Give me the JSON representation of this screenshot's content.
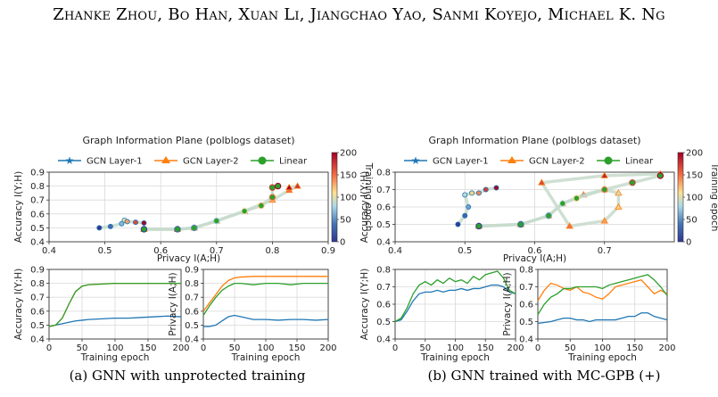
{
  "header": {
    "authors": "Zhanke Zhou, Bo Han, Xuan Li, Jiangchao Yao, Sanmi Koyejo, Michael K. Ng"
  },
  "legend": {
    "gcn1": "GCN Layer-1",
    "gcn2": "GCN Layer-2",
    "linear": "Linear"
  },
  "colors": {
    "gcn1": "#1f77b4",
    "gcn2": "#ff7f0e",
    "linear": "#2ca02c"
  },
  "captions": {
    "a": "(a) GNN with unprotected training",
    "b": "(b) GNN trained with MC-GPB (+)"
  },
  "chart_data": [
    {
      "type": "scatter",
      "title": "Graph Information Plane (polblogs dataset)",
      "xlabel": "Privacy I(A;H)",
      "ylabel": "Accuracy I(Y;H)",
      "xlim": [
        0.4,
        0.9
      ],
      "ylim": [
        0.4,
        0.9
      ],
      "xticks": [
        "0.4",
        "0.5",
        "0.6",
        "0.7",
        "0.8",
        "0.9"
      ],
      "yticks": [
        "0.4",
        "0.5",
        "0.6",
        "0.7",
        "0.8",
        "0.9"
      ],
      "colorbar": {
        "label": "Training epoch",
        "range": [
          0,
          200
        ],
        "ticks": [
          "0",
          "50",
          "100",
          "150",
          "200"
        ]
      },
      "series": [
        {
          "name": "GCN Layer-1",
          "points": [
            [
              0.49,
              0.5
            ],
            [
              0.51,
              0.51
            ],
            [
              0.53,
              0.53
            ],
            [
              0.535,
              0.555
            ],
            [
              0.54,
              0.545
            ],
            [
              0.555,
              0.54
            ],
            [
              0.57,
              0.535
            ]
          ]
        },
        {
          "name": "GCN Layer-2",
          "points": [
            [
              0.57,
              0.49
            ],
            [
              0.63,
              0.49
            ],
            [
              0.66,
              0.5
            ],
            [
              0.7,
              0.55
            ],
            [
              0.75,
              0.62
            ],
            [
              0.8,
              0.7
            ],
            [
              0.83,
              0.77
            ],
            [
              0.845,
              0.8
            ],
            [
              0.83,
              0.79
            ]
          ]
        },
        {
          "name": "Linear",
          "points": [
            [
              0.57,
              0.49
            ],
            [
              0.63,
              0.49
            ],
            [
              0.66,
              0.5
            ],
            [
              0.7,
              0.55
            ],
            [
              0.75,
              0.62
            ],
            [
              0.78,
              0.66
            ],
            [
              0.8,
              0.72
            ],
            [
              0.8,
              0.79
            ],
            [
              0.81,
              0.8
            ]
          ]
        }
      ]
    },
    {
      "type": "line",
      "xlabel": "Training epoch",
      "ylabel": "Accuracy I(Y;H)",
      "xlim": [
        0,
        200
      ],
      "ylim": [
        0.4,
        0.9
      ],
      "xticks": [
        "0",
        "50",
        "100",
        "150",
        "200"
      ],
      "yticks": [
        "0.4",
        "0.5",
        "0.6",
        "0.7",
        "0.8",
        "0.9"
      ],
      "x": [
        0,
        10,
        20,
        30,
        40,
        50,
        60,
        80,
        100,
        120,
        140,
        160,
        180,
        200
      ],
      "series": [
        {
          "name": "GCN Layer-1",
          "values": [
            0.49,
            0.5,
            0.51,
            0.52,
            0.53,
            0.535,
            0.54,
            0.545,
            0.55,
            0.55,
            0.555,
            0.56,
            0.565,
            0.56
          ]
        },
        {
          "name": "GCN Layer-2",
          "values": [
            0.49,
            0.5,
            0.55,
            0.65,
            0.74,
            0.78,
            0.79,
            0.795,
            0.8,
            0.8,
            0.8,
            0.8,
            0.8,
            0.8
          ]
        },
        {
          "name": "Linear",
          "values": [
            0.49,
            0.5,
            0.55,
            0.65,
            0.74,
            0.78,
            0.79,
            0.795,
            0.8,
            0.8,
            0.8,
            0.8,
            0.8,
            0.8
          ]
        }
      ]
    },
    {
      "type": "line",
      "xlabel": "Training epoch",
      "ylabel": "Privacy I(A;H)",
      "xlim": [
        0,
        200
      ],
      "ylim": [
        0.4,
        0.9
      ],
      "xticks": [
        "0",
        "50",
        "100",
        "150",
        "200"
      ],
      "yticks": [
        "0.4",
        "0.5",
        "0.6",
        "0.7",
        "0.8",
        "0.9"
      ],
      "x": [
        0,
        10,
        20,
        30,
        40,
        50,
        60,
        80,
        100,
        120,
        140,
        160,
        180,
        200
      ],
      "series": [
        {
          "name": "GCN Layer-1",
          "values": [
            0.49,
            0.49,
            0.5,
            0.53,
            0.56,
            0.57,
            0.56,
            0.54,
            0.54,
            0.535,
            0.54,
            0.54,
            0.535,
            0.54
          ]
        },
        {
          "name": "GCN Layer-2",
          "values": [
            0.6,
            0.66,
            0.72,
            0.78,
            0.82,
            0.84,
            0.845,
            0.85,
            0.85,
            0.85,
            0.85,
            0.85,
            0.85,
            0.85
          ]
        },
        {
          "name": "Linear",
          "values": [
            0.57,
            0.64,
            0.7,
            0.75,
            0.78,
            0.8,
            0.8,
            0.79,
            0.8,
            0.8,
            0.79,
            0.8,
            0.8,
            0.8
          ]
        }
      ]
    },
    {
      "type": "scatter",
      "title": "Graph Information Plane (polblogs dataset)",
      "xlabel": "Privacy I(A;H)",
      "ylabel": "Accuracy I(Y;H)",
      "xlim": [
        0.4,
        0.8
      ],
      "ylim": [
        0.4,
        0.8
      ],
      "xticks": [
        "0.4",
        "0.5",
        "0.6",
        "0.7"
      ],
      "yticks": [
        "0.4",
        "0.5",
        "0.6",
        "0.7",
        "0.8"
      ],
      "colorbar": {
        "label": "Training epoch",
        "range": [
          0,
          200
        ],
        "ticks": [
          "0",
          "50",
          "100",
          "150",
          "200"
        ]
      },
      "series": [
        {
          "name": "GCN Layer-1",
          "points": [
            [
              0.49,
              0.5
            ],
            [
              0.5,
              0.55
            ],
            [
              0.505,
              0.6
            ],
            [
              0.5,
              0.67
            ],
            [
              0.51,
              0.68
            ],
            [
              0.52,
              0.68
            ],
            [
              0.53,
              0.7
            ],
            [
              0.545,
              0.71
            ]
          ]
        },
        {
          "name": "GCN Layer-2",
          "points": [
            [
              0.52,
              0.49
            ],
            [
              0.58,
              0.5
            ],
            [
              0.62,
              0.55
            ],
            [
              0.64,
              0.62
            ],
            [
              0.67,
              0.67
            ],
            [
              0.7,
              0.7
            ],
            [
              0.72,
              0.68
            ],
            [
              0.72,
              0.6
            ],
            [
              0.7,
              0.52
            ],
            [
              0.65,
              0.49
            ],
            [
              0.61,
              0.74
            ],
            [
              0.7,
              0.78
            ],
            [
              0.78,
              0.79
            ]
          ]
        },
        {
          "name": "Linear",
          "points": [
            [
              0.52,
              0.49
            ],
            [
              0.58,
              0.5
            ],
            [
              0.62,
              0.55
            ],
            [
              0.64,
              0.62
            ],
            [
              0.66,
              0.65
            ],
            [
              0.7,
              0.7
            ],
            [
              0.74,
              0.74
            ],
            [
              0.78,
              0.78
            ]
          ]
        }
      ]
    },
    {
      "type": "line",
      "xlabel": "Training epoch",
      "ylabel": "Accuracy I(Y;H)",
      "xlim": [
        0,
        200
      ],
      "ylim": [
        0.4,
        0.8
      ],
      "xticks": [
        "0",
        "50",
        "100",
        "150",
        "200"
      ],
      "yticks": [
        "0.4",
        "0.5",
        "0.6",
        "0.7",
        "0.8"
      ],
      "x": [
        0,
        10,
        20,
        30,
        40,
        50,
        60,
        70,
        80,
        90,
        100,
        110,
        120,
        130,
        140,
        150,
        160,
        170,
        180,
        190,
        200
      ],
      "series": [
        {
          "name": "GCN Layer-1",
          "values": [
            0.5,
            0.51,
            0.56,
            0.62,
            0.66,
            0.67,
            0.67,
            0.68,
            0.67,
            0.68,
            0.68,
            0.69,
            0.68,
            0.69,
            0.69,
            0.7,
            0.71,
            0.71,
            0.7,
            0.67,
            0.66
          ]
        },
        {
          "name": "Linear",
          "values": [
            0.5,
            0.52,
            0.58,
            0.66,
            0.71,
            0.73,
            0.71,
            0.74,
            0.72,
            0.75,
            0.73,
            0.74,
            0.72,
            0.76,
            0.74,
            0.77,
            0.78,
            0.79,
            0.75,
            0.68,
            0.66
          ]
        }
      ]
    },
    {
      "type": "line",
      "xlabel": "Training epoch",
      "ylabel": "Privacy I(A;H)",
      "xlim": [
        0,
        200
      ],
      "ylim": [
        0.4,
        0.8
      ],
      "xticks": [
        "0",
        "50",
        "100",
        "150",
        "200"
      ],
      "yticks": [
        "0.4",
        "0.5",
        "0.6",
        "0.7",
        "0.8"
      ],
      "x": [
        0,
        10,
        20,
        30,
        40,
        50,
        60,
        70,
        80,
        90,
        100,
        110,
        120,
        130,
        140,
        150,
        160,
        170,
        180,
        190,
        200
      ],
      "series": [
        {
          "name": "GCN Layer-1",
          "values": [
            0.49,
            0.495,
            0.5,
            0.51,
            0.52,
            0.52,
            0.51,
            0.51,
            0.5,
            0.51,
            0.51,
            0.51,
            0.51,
            0.52,
            0.53,
            0.53,
            0.55,
            0.55,
            0.53,
            0.52,
            0.51
          ]
        },
        {
          "name": "GCN Layer-2",
          "values": [
            0.62,
            0.68,
            0.72,
            0.71,
            0.69,
            0.68,
            0.7,
            0.67,
            0.66,
            0.64,
            0.63,
            0.66,
            0.7,
            0.71,
            0.72,
            0.73,
            0.74,
            0.7,
            0.66,
            0.68,
            0.66
          ]
        },
        {
          "name": "Linear",
          "values": [
            0.54,
            0.6,
            0.64,
            0.66,
            0.69,
            0.69,
            0.7,
            0.7,
            0.7,
            0.7,
            0.69,
            0.71,
            0.72,
            0.73,
            0.74,
            0.75,
            0.76,
            0.77,
            0.74,
            0.7,
            0.65
          ]
        }
      ]
    }
  ]
}
